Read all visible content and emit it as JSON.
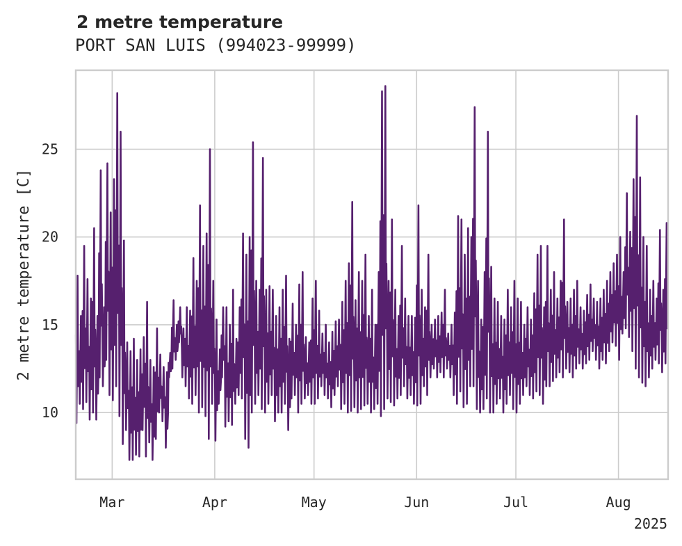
{
  "chart_data": {
    "type": "line",
    "title": "2 metre temperature",
    "subtitle": "PORT SAN LUIS (994023-99999)",
    "xlabel": "",
    "ylabel": "2 metre temperature [C]",
    "year_label": "2025",
    "grid": true,
    "legend": false,
    "xlim": [
      "2025-02-18",
      "2025-08-16"
    ],
    "ylim": [
      6.2,
      29.5
    ],
    "x_ticks": [
      {
        "date": "2025-03-01",
        "label": "Mar"
      },
      {
        "date": "2025-04-01",
        "label": "Apr"
      },
      {
        "date": "2025-05-01",
        "label": "May"
      },
      {
        "date": "2025-06-01",
        "label": "Jun"
      },
      {
        "date": "2025-07-01",
        "label": "Jul"
      },
      {
        "date": "2025-08-01",
        "label": "Aug"
      }
    ],
    "y_ticks": [
      10,
      15,
      20,
      25
    ],
    "series": [
      {
        "color": "#56206e",
        "x": [
          "2025-02-18",
          "2025-02-19",
          "2025-02-20",
          "2025-02-21",
          "2025-02-22",
          "2025-02-23",
          "2025-02-24",
          "2025-02-25",
          "2025-02-26",
          "2025-02-27",
          "2025-02-28",
          "2025-03-01",
          "2025-03-02",
          "2025-03-03",
          "2025-03-04",
          "2025-03-05",
          "2025-03-06",
          "2025-03-07",
          "2025-03-08",
          "2025-03-09",
          "2025-03-10",
          "2025-03-11",
          "2025-03-12",
          "2025-03-13",
          "2025-03-14",
          "2025-03-15",
          "2025-03-16",
          "2025-03-17",
          "2025-03-18",
          "2025-03-19",
          "2025-03-20",
          "2025-03-21",
          "2025-03-22",
          "2025-03-23",
          "2025-03-24",
          "2025-03-25",
          "2025-03-26",
          "2025-03-27",
          "2025-03-28",
          "2025-03-29",
          "2025-03-30",
          "2025-03-31",
          "2025-04-01",
          "2025-04-02",
          "2025-04-03",
          "2025-04-04",
          "2025-04-05",
          "2025-04-06",
          "2025-04-07",
          "2025-04-08",
          "2025-04-09",
          "2025-04-10",
          "2025-04-11",
          "2025-04-12",
          "2025-04-13",
          "2025-04-14",
          "2025-04-15",
          "2025-04-16",
          "2025-04-17",
          "2025-04-18",
          "2025-04-19",
          "2025-04-20",
          "2025-04-21",
          "2025-04-22",
          "2025-04-23",
          "2025-04-24",
          "2025-04-25",
          "2025-04-26",
          "2025-04-27",
          "2025-04-28",
          "2025-04-29",
          "2025-04-30",
          "2025-05-01",
          "2025-05-02",
          "2025-05-03",
          "2025-05-04",
          "2025-05-05",
          "2025-05-06",
          "2025-05-07",
          "2025-05-08",
          "2025-05-09",
          "2025-05-10",
          "2025-05-11",
          "2025-05-12",
          "2025-05-13",
          "2025-05-14",
          "2025-05-15",
          "2025-05-16",
          "2025-05-17",
          "2025-05-18",
          "2025-05-19",
          "2025-05-20",
          "2025-05-21",
          "2025-05-22",
          "2025-05-23",
          "2025-05-24",
          "2025-05-25",
          "2025-05-26",
          "2025-05-27",
          "2025-05-28",
          "2025-05-29",
          "2025-05-30",
          "2025-05-31",
          "2025-06-01",
          "2025-06-02",
          "2025-06-03",
          "2025-06-04",
          "2025-06-05",
          "2025-06-06",
          "2025-06-07",
          "2025-06-08",
          "2025-06-09",
          "2025-06-10",
          "2025-06-11",
          "2025-06-12",
          "2025-06-13",
          "2025-06-14",
          "2025-06-15",
          "2025-06-16",
          "2025-06-17",
          "2025-06-18",
          "2025-06-19",
          "2025-06-20",
          "2025-06-21",
          "2025-06-22",
          "2025-06-23",
          "2025-06-24",
          "2025-06-25",
          "2025-06-26",
          "2025-06-27",
          "2025-06-28",
          "2025-06-29",
          "2025-06-30",
          "2025-07-01",
          "2025-07-02",
          "2025-07-03",
          "2025-07-04",
          "2025-07-05",
          "2025-07-06",
          "2025-07-07",
          "2025-07-08",
          "2025-07-09",
          "2025-07-10",
          "2025-07-11",
          "2025-07-12",
          "2025-07-13",
          "2025-07-14",
          "2025-07-15",
          "2025-07-16",
          "2025-07-17",
          "2025-07-18",
          "2025-07-19",
          "2025-07-20",
          "2025-07-21",
          "2025-07-22",
          "2025-07-23",
          "2025-07-24",
          "2025-07-25",
          "2025-07-26",
          "2025-07-27",
          "2025-07-28",
          "2025-07-29",
          "2025-07-30",
          "2025-07-31",
          "2025-08-01",
          "2025-08-02",
          "2025-08-03",
          "2025-08-04",
          "2025-08-05",
          "2025-08-06",
          "2025-08-07",
          "2025-08-08",
          "2025-08-09",
          "2025-08-10",
          "2025-08-11",
          "2025-08-12",
          "2025-08-13",
          "2025-08-14",
          "2025-08-15",
          "2025-08-16"
        ],
        "min": [
          9.4,
          10.5,
          10.2,
          10.6,
          9.6,
          10.0,
          9.6,
          12.0,
          11.5,
          13.0,
          11.0,
          10.7,
          11.5,
          9.8,
          8.2,
          9.0,
          7.3,
          7.3,
          7.6,
          7.5,
          9.0,
          7.5,
          8.3,
          7.3,
          8.5,
          10.0,
          9.5,
          8.0,
          12.0,
          12.5,
          13.0,
          14.0,
          12.0,
          11.5,
          10.8,
          10.5,
          11.0,
          10.0,
          10.3,
          9.8,
          8.5,
          10.5,
          8.4,
          10.5,
          12.0,
          9.2,
          9.5,
          9.3,
          10.5,
          11.0,
          10.8,
          8.5,
          8.0,
          10.0,
          10.5,
          11.0,
          10.2,
          10.0,
          10.5,
          11.0,
          9.5,
          10.0,
          10.0,
          10.5,
          9.0,
          10.8,
          11.0,
          10.0,
          10.5,
          10.8,
          11.0,
          10.5,
          10.5,
          10.8,
          11.5,
          11.0,
          10.8,
          10.3,
          11.0,
          11.5,
          10.2,
          10.5,
          10.0,
          10.1,
          10.3,
          10.0,
          10.2,
          10.4,
          10.5,
          10.0,
          10.2,
          10.5,
          9.8,
          10.2,
          10.8,
          10.6,
          10.4,
          10.8,
          11.0,
          11.5,
          10.8,
          11.0,
          10.5,
          10.4,
          10.5,
          11.5,
          11.0,
          12.0,
          12.5,
          12.0,
          12.3,
          12.0,
          12.5,
          12.0,
          11.0,
          10.5,
          11.2,
          10.3,
          10.5,
          11.5,
          11.5,
          10.2,
          10.0,
          10.2,
          10.8,
          10.0,
          10.0,
          10.5,
          10.8,
          10.0,
          10.5,
          11.0,
          10.2,
          10.0,
          10.5,
          11.0,
          11.5,
          11.0,
          10.8,
          11.2,
          11.0,
          10.5,
          11.5,
          11.5,
          11.8,
          12.0,
          12.3,
          12.0,
          12.5,
          12.3,
          12.0,
          12.5,
          12.8,
          12.5,
          12.8,
          13.0,
          13.5,
          13.0,
          12.5,
          13.0,
          12.8,
          13.5,
          14.0,
          13.8,
          13.0,
          14.5,
          14.8,
          14.3,
          13.5,
          12.5,
          12.0,
          11.7,
          11.5,
          12.0,
          12.5,
          13.0,
          12.8,
          12.3,
          12.8,
          13.0,
          12.5,
          13.2,
          12.8
        ],
        "max": [
          17.8,
          15.5,
          19.5,
          17.6,
          16.5,
          20.5,
          15.5,
          23.8,
          16.0,
          24.2,
          21.4,
          23.3,
          28.2,
          26.0,
          19.8,
          14.0,
          13.5,
          14.2,
          13.0,
          13.6,
          14.3,
          16.3,
          13.0,
          12.6,
          14.8,
          13.3,
          12.6,
          12.3,
          13.4,
          16.4,
          15.0,
          16.0,
          14.8,
          16.0,
          15.8,
          18.8,
          17.5,
          21.8,
          19.5,
          20.2,
          25.0,
          17.5,
          15.3,
          13.6,
          16.0,
          16.0,
          15.0,
          17.0,
          14.2,
          16.0,
          20.2,
          19.0,
          20.0,
          25.4,
          17.5,
          17.0,
          24.5,
          17.0,
          17.2,
          17.0,
          15.5,
          16.0,
          17.0,
          17.8,
          14.2,
          16.2,
          15.0,
          17.3,
          18.0,
          14.3,
          14.0,
          16.5,
          17.5,
          15.8,
          14.5,
          15.0,
          14.0,
          14.6,
          15.2,
          15.3,
          16.3,
          17.5,
          18.5,
          22.0,
          16.4,
          18.0,
          17.5,
          19.0,
          15.5,
          17.0,
          15.0,
          18.0,
          28.3,
          28.6,
          17.5,
          21.0,
          17.0,
          15.5,
          19.5,
          16.5,
          15.5,
          15.5,
          15.4,
          21.8,
          17.0,
          16.0,
          19.0,
          15.0,
          15.3,
          15.5,
          15.7,
          17.0,
          14.5,
          15.0,
          15.7,
          21.2,
          21.0,
          19.0,
          20.5,
          20.0,
          27.4,
          17.5,
          15.3,
          18.0,
          26.0,
          18.3,
          16.5,
          16.3,
          15.5,
          15.3,
          17.0,
          16.0,
          17.5,
          16.5,
          16.3,
          15.0,
          16.0,
          15.3,
          16.8,
          19.0,
          19.5,
          16.0,
          19.5,
          17.0,
          18.0,
          16.5,
          17.5,
          21.0,
          16.3,
          16.5,
          17.0,
          17.5,
          16.0,
          15.8,
          16.7,
          17.3,
          16.5,
          16.3,
          16.5,
          17.0,
          17.5,
          18.0,
          18.5,
          19.0,
          20.0,
          18.0,
          22.5,
          20.3,
          23.3,
          26.9,
          23.4,
          20.0,
          19.5,
          17.0,
          17.5,
          16.5,
          20.4,
          17.0,
          20.8,
          16.8
        ]
      }
    ]
  }
}
